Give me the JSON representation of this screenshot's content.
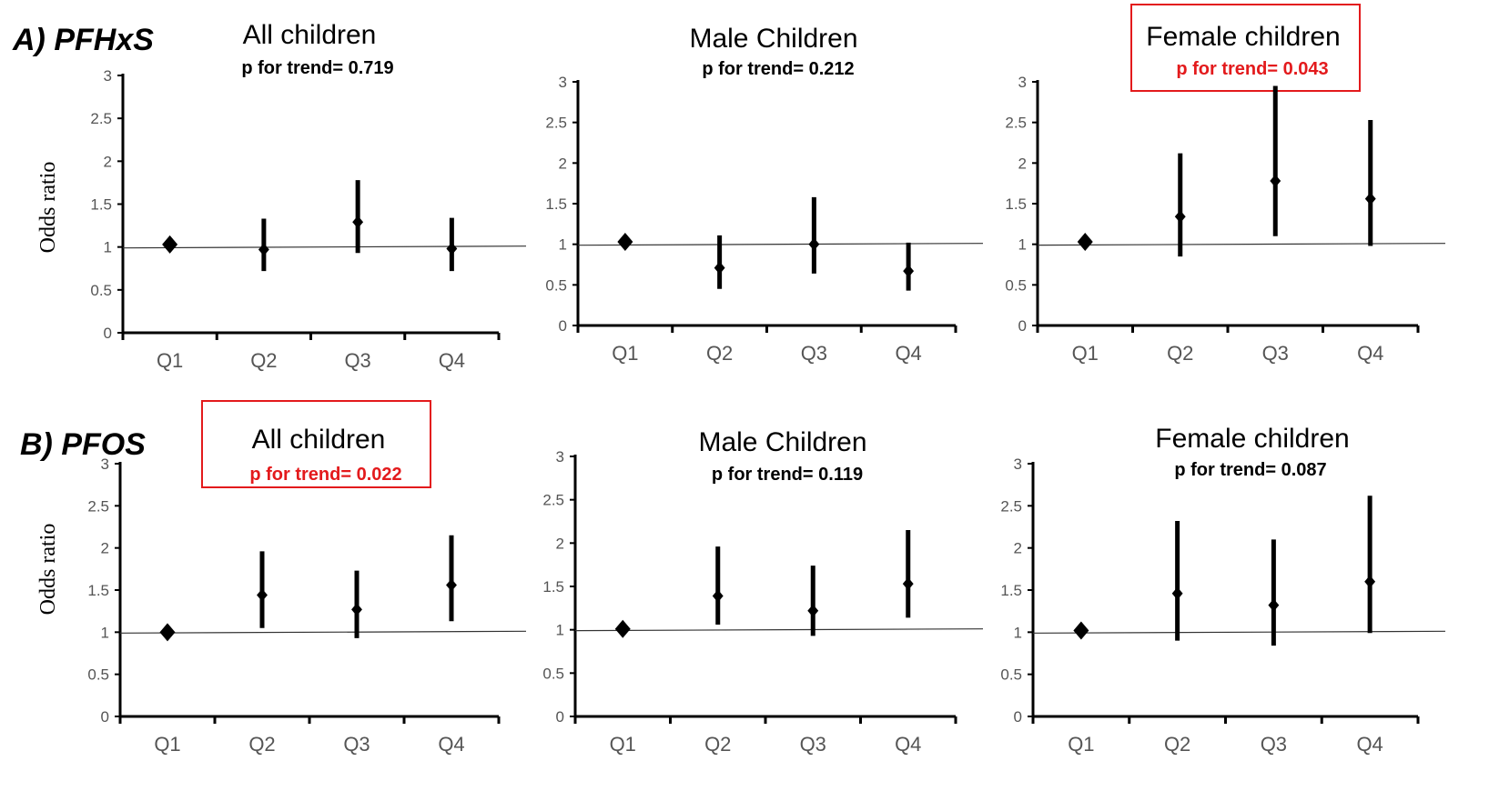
{
  "figure": {
    "rows": [
      {
        "label": "A) PFHxS"
      },
      {
        "label": "B) PFOS"
      }
    ],
    "ylabel": "Odds ratio"
  },
  "chart_data": [
    {
      "type": "scatter",
      "row": "A) PFHxS",
      "title": "All children",
      "trend_text": "p for trend= 0.719",
      "highlight": false,
      "ylabel": "Odds ratio",
      "ylim": [
        0,
        3
      ],
      "yticks": [
        "0",
        "0.5",
        "1",
        "1.5",
        "2",
        "2.5",
        "3"
      ],
      "categories": [
        "Q1",
        "Q2",
        "Q3",
        "Q4"
      ],
      "values": [
        1.03,
        0.97,
        1.29,
        0.98
      ],
      "lower": [
        1.03,
        0.72,
        0.93,
        0.72
      ],
      "upper": [
        1.03,
        1.33,
        1.78,
        1.34
      ],
      "reference_line": 1
    },
    {
      "type": "scatter",
      "row": "A) PFHxS",
      "title": "Male Children",
      "trend_text": "p for trend= 0.212",
      "highlight": false,
      "ylabel": "",
      "ylim": [
        0,
        3
      ],
      "yticks": [
        "0",
        "0.5",
        "1",
        "1.5",
        "2",
        "2.5",
        "3"
      ],
      "categories": [
        "Q1",
        "Q2",
        "Q3",
        "Q4"
      ],
      "values": [
        1.03,
        0.71,
        1.0,
        0.67
      ],
      "lower": [
        1.03,
        0.45,
        0.64,
        0.43
      ],
      "upper": [
        1.03,
        1.11,
        1.58,
        1.02
      ],
      "reference_line": 1
    },
    {
      "type": "scatter",
      "row": "A) PFHxS",
      "title": "Female children",
      "trend_text": "p for trend= 0.043",
      "highlight": true,
      "ylabel": "",
      "ylim": [
        0,
        3
      ],
      "yticks": [
        "0",
        "0.5",
        "1",
        "1.5",
        "2",
        "2.5",
        "3"
      ],
      "categories": [
        "Q1",
        "Q2",
        "Q3",
        "Q4"
      ],
      "values": [
        1.03,
        1.34,
        1.78,
        1.56
      ],
      "lower": [
        1.03,
        0.85,
        1.1,
        0.98
      ],
      "upper": [
        1.03,
        2.12,
        2.95,
        2.53
      ],
      "reference_line": 1
    },
    {
      "type": "scatter",
      "row": "B) PFOS",
      "title": "All children",
      "trend_text": "p for trend= 0.022",
      "highlight": true,
      "ylabel": "Odds ratio",
      "ylim": [
        0,
        3
      ],
      "yticks": [
        "0",
        "0.5",
        "1",
        "1.5",
        "2",
        "2.5",
        "3"
      ],
      "categories": [
        "Q1",
        "Q2",
        "Q3",
        "Q4"
      ],
      "values": [
        1.0,
        1.44,
        1.27,
        1.56
      ],
      "lower": [
        1.0,
        1.05,
        0.93,
        1.13
      ],
      "upper": [
        1.0,
        1.96,
        1.73,
        2.15
      ],
      "reference_line": 1
    },
    {
      "type": "scatter",
      "row": "B) PFOS",
      "title": "Male Children",
      "trend_text": "p for trend= 0.119",
      "highlight": false,
      "ylabel": "",
      "ylim": [
        0,
        3
      ],
      "yticks": [
        "0",
        "0.5",
        "1",
        "1.5",
        "2",
        "2.5",
        "3"
      ],
      "categories": [
        "Q1",
        "Q2",
        "Q3",
        "Q4"
      ],
      "values": [
        1.01,
        1.39,
        1.22,
        1.53
      ],
      "lower": [
        1.01,
        1.06,
        0.93,
        1.14
      ],
      "upper": [
        1.01,
        1.96,
        1.74,
        2.15
      ],
      "reference_line": 1
    },
    {
      "type": "scatter",
      "row": "B) PFOS",
      "title": "Female children",
      "trend_text": "p for trend= 0.087",
      "highlight": false,
      "ylabel": "",
      "ylim": [
        0,
        3
      ],
      "yticks": [
        "0",
        "0.5",
        "1",
        "1.5",
        "2",
        "2.5",
        "3"
      ],
      "categories": [
        "Q1",
        "Q2",
        "Q3",
        "Q4"
      ],
      "values": [
        1.02,
        1.46,
        1.32,
        1.6
      ],
      "lower": [
        1.02,
        0.9,
        0.84,
        0.99
      ],
      "upper": [
        1.02,
        2.32,
        2.1,
        2.62
      ],
      "reference_line": 1
    }
  ]
}
